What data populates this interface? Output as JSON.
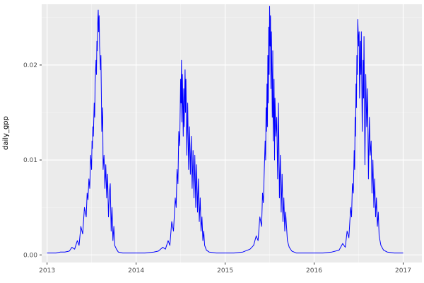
{
  "chart_data": {
    "type": "line",
    "title": "",
    "xlabel": "",
    "ylabel": "daily_gpp",
    "legend": "none",
    "grid": "on",
    "panel_bg": "#EBEBEB",
    "grid_major_color": "#FFFFFF",
    "grid_minor_color": "#F5F5F5",
    "axis_text_color": "#4D4D4D",
    "tick_mark_color": "#333333",
    "line_color": "#0000FF",
    "xlim": [
      2012.94,
      2017.21
    ],
    "ylim": [
      -0.0008,
      0.0264
    ],
    "x_ticks": [
      2013,
      2014,
      2015,
      2016,
      2017
    ],
    "x_tick_labels": [
      "2013",
      "2014",
      "2015",
      "2016",
      "2017"
    ],
    "x_minor_ticks": [
      2013.5,
      2014.5,
      2015.5,
      2016.5
    ],
    "y_ticks": [
      0.0,
      0.01,
      0.02
    ],
    "y_tick_labels": [
      "0.00",
      "0.01",
      "0.02"
    ],
    "y_minor_ticks": [
      0.005,
      0.015,
      0.025
    ],
    "series": [
      {
        "name": "daily_gpp",
        "points": [
          [
            2013.0,
            0.0002
          ],
          [
            2013.05,
            0.0002
          ],
          [
            2013.1,
            0.0002
          ],
          [
            2013.15,
            0.0003
          ],
          [
            2013.2,
            0.0003
          ],
          [
            2013.25,
            0.0004
          ],
          [
            2013.28,
            0.0008
          ],
          [
            2013.31,
            0.0006
          ],
          [
            2013.34,
            0.0015
          ],
          [
            2013.36,
            0.001
          ],
          [
            2013.38,
            0.003
          ],
          [
            2013.4,
            0.0022
          ],
          [
            2013.42,
            0.005
          ],
          [
            2013.44,
            0.004
          ],
          [
            2013.45,
            0.0065
          ],
          [
            2013.46,
            0.0058
          ],
          [
            2013.47,
            0.008
          ],
          [
            2013.48,
            0.007
          ],
          [
            2013.49,
            0.0105
          ],
          [
            2013.5,
            0.009
          ],
          [
            2013.505,
            0.012
          ],
          [
            2013.51,
            0.0112
          ],
          [
            2013.515,
            0.0135
          ],
          [
            2013.52,
            0.0125
          ],
          [
            2013.53,
            0.016
          ],
          [
            2013.535,
            0.0145
          ],
          [
            2013.54,
            0.018
          ],
          [
            2013.55,
            0.0205
          ],
          [
            2013.555,
            0.019
          ],
          [
            2013.56,
            0.0225
          ],
          [
            2013.565,
            0.0215
          ],
          [
            2013.57,
            0.0245
          ],
          [
            2013.575,
            0.0258
          ],
          [
            2013.58,
            0.0235
          ],
          [
            2013.585,
            0.0252
          ],
          [
            2013.59,
            0.022
          ],
          [
            2013.6,
            0.0195
          ],
          [
            2013.605,
            0.021
          ],
          [
            2013.615,
            0.013
          ],
          [
            2013.625,
            0.0155
          ],
          [
            2013.63,
            0.009
          ],
          [
            2013.64,
            0.0105
          ],
          [
            2013.65,
            0.007
          ],
          [
            2013.66,
            0.0095
          ],
          [
            2013.67,
            0.006
          ],
          [
            2013.68,
            0.0085
          ],
          [
            2013.69,
            0.004
          ],
          [
            2013.7,
            0.0065
          ],
          [
            2013.71,
            0.0075
          ],
          [
            2013.72,
            0.0025
          ],
          [
            2013.73,
            0.005
          ],
          [
            2013.74,
            0.0015
          ],
          [
            2013.75,
            0.003
          ],
          [
            2013.76,
            0.001
          ],
          [
            2013.78,
            0.0006
          ],
          [
            2013.8,
            0.0003
          ],
          [
            2013.85,
            0.0002
          ],
          [
            2013.9,
            0.0002
          ],
          [
            2013.95,
            0.0002
          ],
          [
            2014.0,
            0.0002
          ],
          [
            2014.1,
            0.0002
          ],
          [
            2014.2,
            0.0003
          ],
          [
            2014.25,
            0.0004
          ],
          [
            2014.3,
            0.0008
          ],
          [
            2014.33,
            0.0006
          ],
          [
            2014.36,
            0.0015
          ],
          [
            2014.38,
            0.001
          ],
          [
            2014.4,
            0.0035
          ],
          [
            2014.42,
            0.0025
          ],
          [
            2014.44,
            0.006
          ],
          [
            2014.45,
            0.005
          ],
          [
            2014.46,
            0.009
          ],
          [
            2014.47,
            0.0075
          ],
          [
            2014.48,
            0.013
          ],
          [
            2014.49,
            0.0115
          ],
          [
            2014.5,
            0.0185
          ],
          [
            2014.505,
            0.016
          ],
          [
            2014.51,
            0.0205
          ],
          [
            2014.515,
            0.014
          ],
          [
            2014.52,
            0.019
          ],
          [
            2014.53,
            0.0125
          ],
          [
            2014.535,
            0.0175
          ],
          [
            2014.54,
            0.0135
          ],
          [
            2014.55,
            0.0195
          ],
          [
            2014.555,
            0.015
          ],
          [
            2014.56,
            0.0185
          ],
          [
            2014.57,
            0.0105
          ],
          [
            2014.58,
            0.016
          ],
          [
            2014.59,
            0.009
          ],
          [
            2014.6,
            0.0135
          ],
          [
            2014.61,
            0.0085
          ],
          [
            2014.62,
            0.0125
          ],
          [
            2014.63,
            0.007
          ],
          [
            2014.64,
            0.011
          ],
          [
            2014.65,
            0.006
          ],
          [
            2014.66,
            0.0105
          ],
          [
            2014.67,
            0.005
          ],
          [
            2014.68,
            0.0095
          ],
          [
            2014.69,
            0.0045
          ],
          [
            2014.7,
            0.008
          ],
          [
            2014.71,
            0.0035
          ],
          [
            2014.72,
            0.006
          ],
          [
            2014.73,
            0.0025
          ],
          [
            2014.74,
            0.004
          ],
          [
            2014.75,
            0.0015
          ],
          [
            2014.76,
            0.0025
          ],
          [
            2014.77,
            0.001
          ],
          [
            2014.79,
            0.0005
          ],
          [
            2014.82,
            0.0003
          ],
          [
            2014.9,
            0.0002
          ],
          [
            2014.95,
            0.0002
          ],
          [
            2015.0,
            0.0002
          ],
          [
            2015.1,
            0.0002
          ],
          [
            2015.2,
            0.0003
          ],
          [
            2015.28,
            0.0006
          ],
          [
            2015.32,
            0.001
          ],
          [
            2015.35,
            0.002
          ],
          [
            2015.37,
            0.0015
          ],
          [
            2015.39,
            0.004
          ],
          [
            2015.41,
            0.003
          ],
          [
            2015.42,
            0.0065
          ],
          [
            2015.43,
            0.0055
          ],
          [
            2015.44,
            0.009
          ],
          [
            2015.45,
            0.012
          ],
          [
            2015.455,
            0.01
          ],
          [
            2015.46,
            0.0155
          ],
          [
            2015.465,
            0.013
          ],
          [
            2015.47,
            0.018
          ],
          [
            2015.475,
            0.0135
          ],
          [
            2015.48,
            0.021
          ],
          [
            2015.485,
            0.016
          ],
          [
            2015.49,
            0.024
          ],
          [
            2015.495,
            0.019
          ],
          [
            2015.5,
            0.0262
          ],
          [
            2015.505,
            0.022
          ],
          [
            2015.51,
            0.0252
          ],
          [
            2015.515,
            0.0175
          ],
          [
            2015.52,
            0.0235
          ],
          [
            2015.53,
            0.0145
          ],
          [
            2015.535,
            0.0215
          ],
          [
            2015.54,
            0.012
          ],
          [
            2015.55,
            0.0185
          ],
          [
            2015.555,
            0.01
          ],
          [
            2015.56,
            0.0165
          ],
          [
            2015.57,
            0.0125
          ],
          [
            2015.58,
            0.0145
          ],
          [
            2015.59,
            0.008
          ],
          [
            2015.6,
            0.016
          ],
          [
            2015.61,
            0.006
          ],
          [
            2015.62,
            0.0105
          ],
          [
            2015.63,
            0.0045
          ],
          [
            2015.64,
            0.0085
          ],
          [
            2015.65,
            0.0035
          ],
          [
            2015.66,
            0.006
          ],
          [
            2015.67,
            0.0025
          ],
          [
            2015.68,
            0.0045
          ],
          [
            2015.7,
            0.0015
          ],
          [
            2015.72,
            0.0008
          ],
          [
            2015.75,
            0.0004
          ],
          [
            2015.8,
            0.0002
          ],
          [
            2015.9,
            0.0002
          ],
          [
            2016.0,
            0.0002
          ],
          [
            2016.1,
            0.0002
          ],
          [
            2016.2,
            0.0003
          ],
          [
            2016.28,
            0.0005
          ],
          [
            2016.32,
            0.0012
          ],
          [
            2016.35,
            0.0008
          ],
          [
            2016.37,
            0.0025
          ],
          [
            2016.39,
            0.0018
          ],
          [
            2016.41,
            0.005
          ],
          [
            2016.42,
            0.004
          ],
          [
            2016.43,
            0.0075
          ],
          [
            2016.44,
            0.0065
          ],
          [
            2016.45,
            0.011
          ],
          [
            2016.455,
            0.009
          ],
          [
            2016.46,
            0.0145
          ],
          [
            2016.465,
            0.0125
          ],
          [
            2016.47,
            0.018
          ],
          [
            2016.475,
            0.0155
          ],
          [
            2016.48,
            0.021
          ],
          [
            2016.485,
            0.019
          ],
          [
            2016.49,
            0.0248
          ],
          [
            2016.5,
            0.022
          ],
          [
            2016.505,
            0.0235
          ],
          [
            2016.51,
            0.0165
          ],
          [
            2016.52,
            0.0225
          ],
          [
            2016.525,
            0.019
          ],
          [
            2016.53,
            0.0235
          ],
          [
            2016.54,
            0.013
          ],
          [
            2016.55,
            0.0205
          ],
          [
            2016.555,
            0.0165
          ],
          [
            2016.56,
            0.023
          ],
          [
            2016.57,
            0.0095
          ],
          [
            2016.58,
            0.019
          ],
          [
            2016.59,
            0.0135
          ],
          [
            2016.6,
            0.0175
          ],
          [
            2016.61,
            0.008
          ],
          [
            2016.62,
            0.0145
          ],
          [
            2016.63,
            0.0105
          ],
          [
            2016.64,
            0.012
          ],
          [
            2016.65,
            0.0065
          ],
          [
            2016.66,
            0.01
          ],
          [
            2016.67,
            0.005
          ],
          [
            2016.68,
            0.008
          ],
          [
            2016.69,
            0.004
          ],
          [
            2016.7,
            0.006
          ],
          [
            2016.71,
            0.003
          ],
          [
            2016.72,
            0.0045
          ],
          [
            2016.73,
            0.002
          ],
          [
            2016.75,
            0.001
          ],
          [
            2016.78,
            0.0005
          ],
          [
            2016.82,
            0.0003
          ],
          [
            2016.9,
            0.0002
          ],
          [
            2017.0,
            0.0002
          ]
        ]
      }
    ]
  }
}
